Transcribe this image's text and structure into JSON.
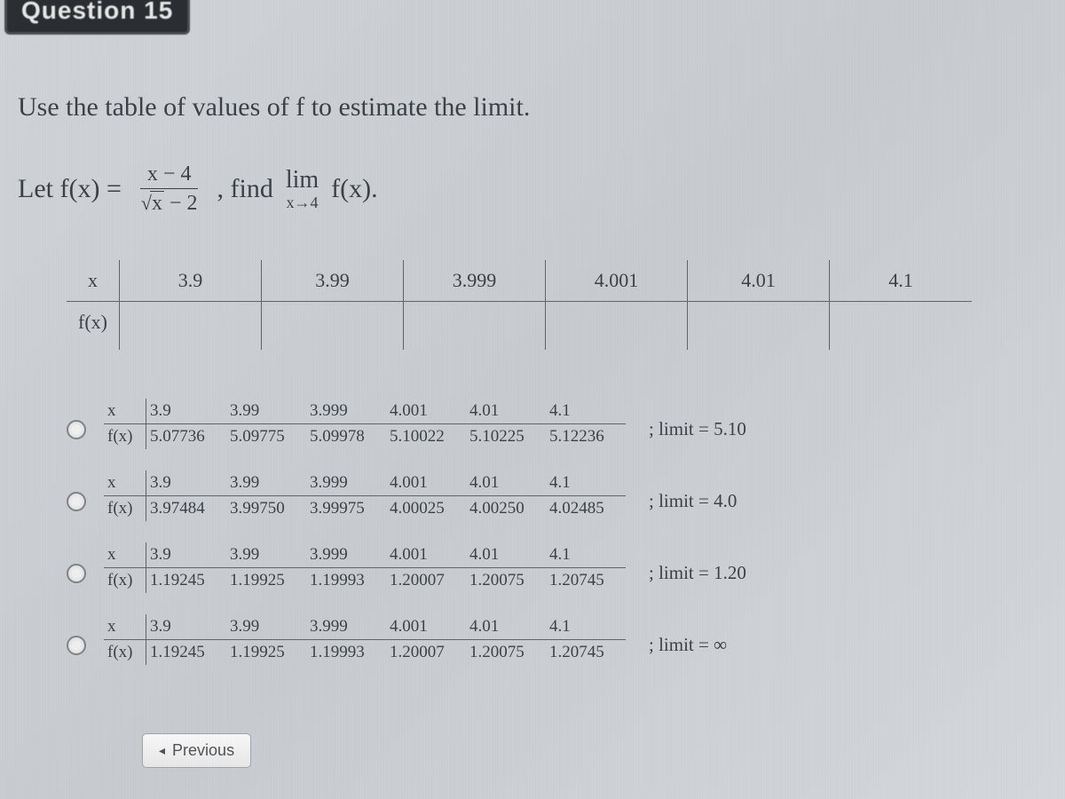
{
  "header": {
    "question_label": "Question 15"
  },
  "prompt": "Use the table of values of f to estimate the limit.",
  "formula": {
    "let": "Let f(x) =",
    "num": "x − 4",
    "denom_sqrt": "x",
    "denom_rest": " − 2",
    "find": ", find",
    "lim": "lim",
    "lim_sub": "x→4",
    "fx": "f(x)."
  },
  "blank_table": {
    "x_label": "x",
    "fx_label": "f(x)",
    "x_values": [
      "3.9",
      "3.99",
      "3.999",
      "4.001",
      "4.01",
      "4.1"
    ]
  },
  "options": [
    {
      "x_label": "x",
      "fx_label": "f(x)",
      "x": [
        "3.9",
        "3.99",
        "3.999",
        "4.001",
        "4.01",
        "4.1"
      ],
      "fx": [
        "5.07736",
        "5.09775",
        "5.09978",
        "5.10022",
        "5.10225",
        "5.12236"
      ],
      "limit": "; limit = 5.10"
    },
    {
      "x_label": "x",
      "fx_label": "f(x)",
      "x": [
        "3.9",
        "3.99",
        "3.999",
        "4.001",
        "4.01",
        "4.1"
      ],
      "fx": [
        "3.97484",
        "3.99750",
        "3.99975",
        "4.00025",
        "4.00250",
        "4.02485"
      ],
      "limit": "; limit = 4.0"
    },
    {
      "x_label": "x",
      "fx_label": "f(x)",
      "x": [
        "3.9",
        "3.99",
        "3.999",
        "4.001",
        "4.01",
        "4.1"
      ],
      "fx": [
        "1.19245",
        "1.19925",
        "1.19993",
        "1.20007",
        "1.20075",
        "1.20745"
      ],
      "limit": "; limit = 1.20"
    },
    {
      "x_label": "x",
      "fx_label": "f(x)",
      "x": [
        "3.9",
        "3.99",
        "3.999",
        "4.001",
        "4.01",
        "4.1"
      ],
      "fx": [
        "1.19245",
        "1.19925",
        "1.19993",
        "1.20007",
        "1.20075",
        "1.20745"
      ],
      "limit": "; limit = ∞"
    }
  ],
  "buttons": {
    "previous": "Previous"
  },
  "colors": {
    "background": "#cfd3d7",
    "text": "#3a4248",
    "border": "#606468"
  }
}
